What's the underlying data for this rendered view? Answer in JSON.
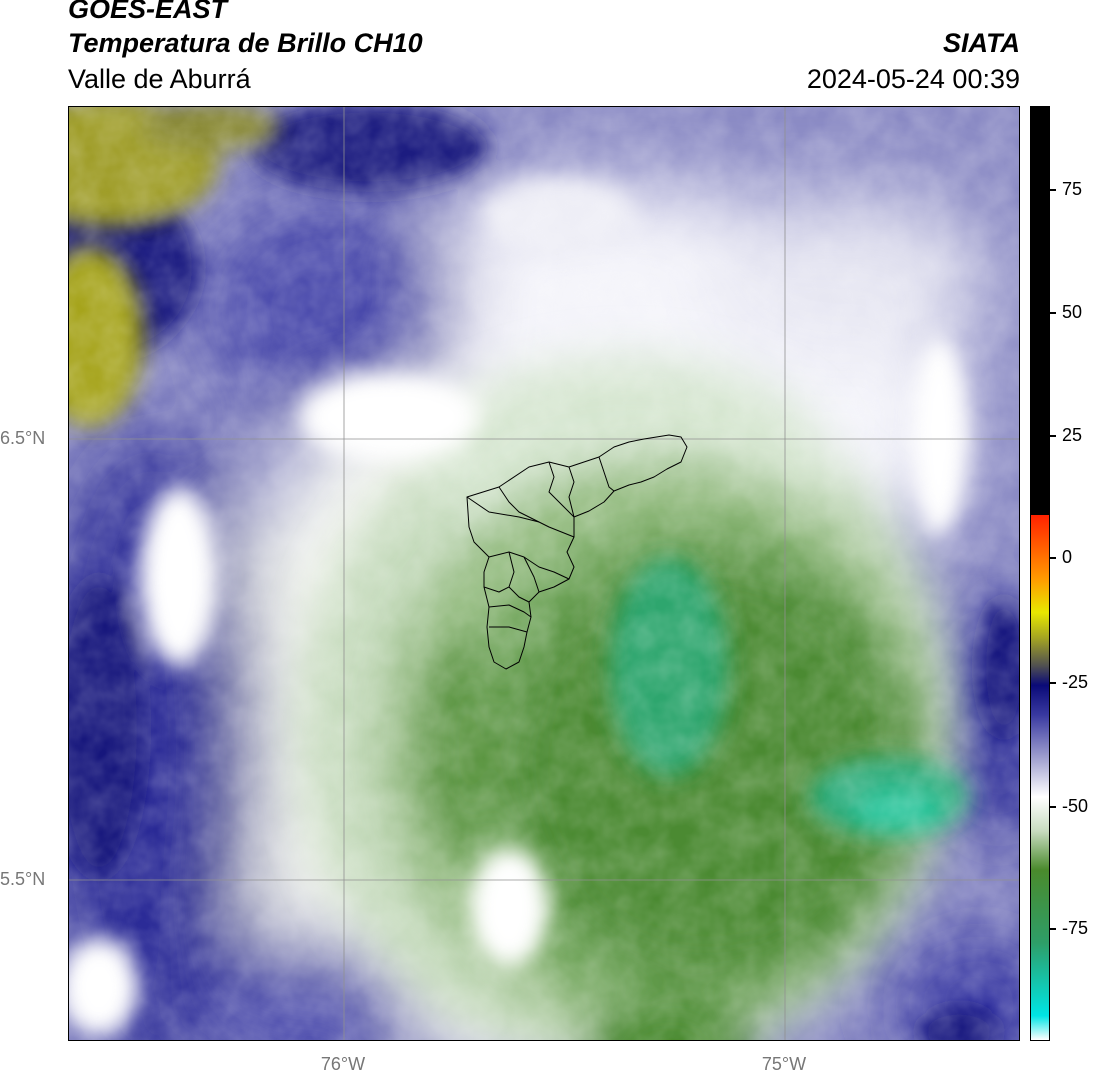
{
  "header": {
    "source": "GOES-EAST",
    "product": "Temperatura de Brillo CH10",
    "region": "Valle de Aburrá",
    "organization": "SIATA",
    "timestamp": "2024-05-24 00:39"
  },
  "map": {
    "lat_labels": [
      "6.5°N",
      "5.5°N"
    ],
    "lon_labels": [
      "76°W",
      "75°W"
    ],
    "palette": {
      "yellow_olive": "#a3a31c",
      "navy": "#10106e",
      "blue_purple": "#3c3ca0",
      "lavender": "#9a9ac8",
      "white": "#ffffff",
      "pale_green": "#cfe0c8",
      "green": "#4e8c32",
      "teal": "#1ebe96"
    }
  },
  "colorbar": {
    "tick_labels": [
      "75",
      "50",
      "25",
      "0",
      "-25",
      "-50",
      "-75"
    ],
    "stops": [
      {
        "value": -100,
        "color": "#ffffff"
      },
      {
        "value": -95,
        "color": "#00e5e5"
      },
      {
        "value": -80,
        "color": "#2e9e68"
      },
      {
        "value": -65,
        "color": "#4a8a2c"
      },
      {
        "value": -57,
        "color": "#c8dcc0"
      },
      {
        "value": -50,
        "color": "#ffffff"
      },
      {
        "value": -42,
        "color": "#a0a0d0"
      },
      {
        "value": -33,
        "color": "#3838a0"
      },
      {
        "value": -27,
        "color": "#0a0a78"
      },
      {
        "value": -23,
        "color": "#505050"
      },
      {
        "value": -17,
        "color": "#a8a820"
      },
      {
        "value": -12,
        "color": "#e8e800"
      },
      {
        "value": -5,
        "color": "#ff9900"
      },
      {
        "value": 8,
        "color": "#ff2200"
      },
      {
        "value": 8.01,
        "color": "#000000"
      },
      {
        "value": 92,
        "color": "#000000"
      }
    ],
    "range": [
      -100,
      92
    ]
  }
}
